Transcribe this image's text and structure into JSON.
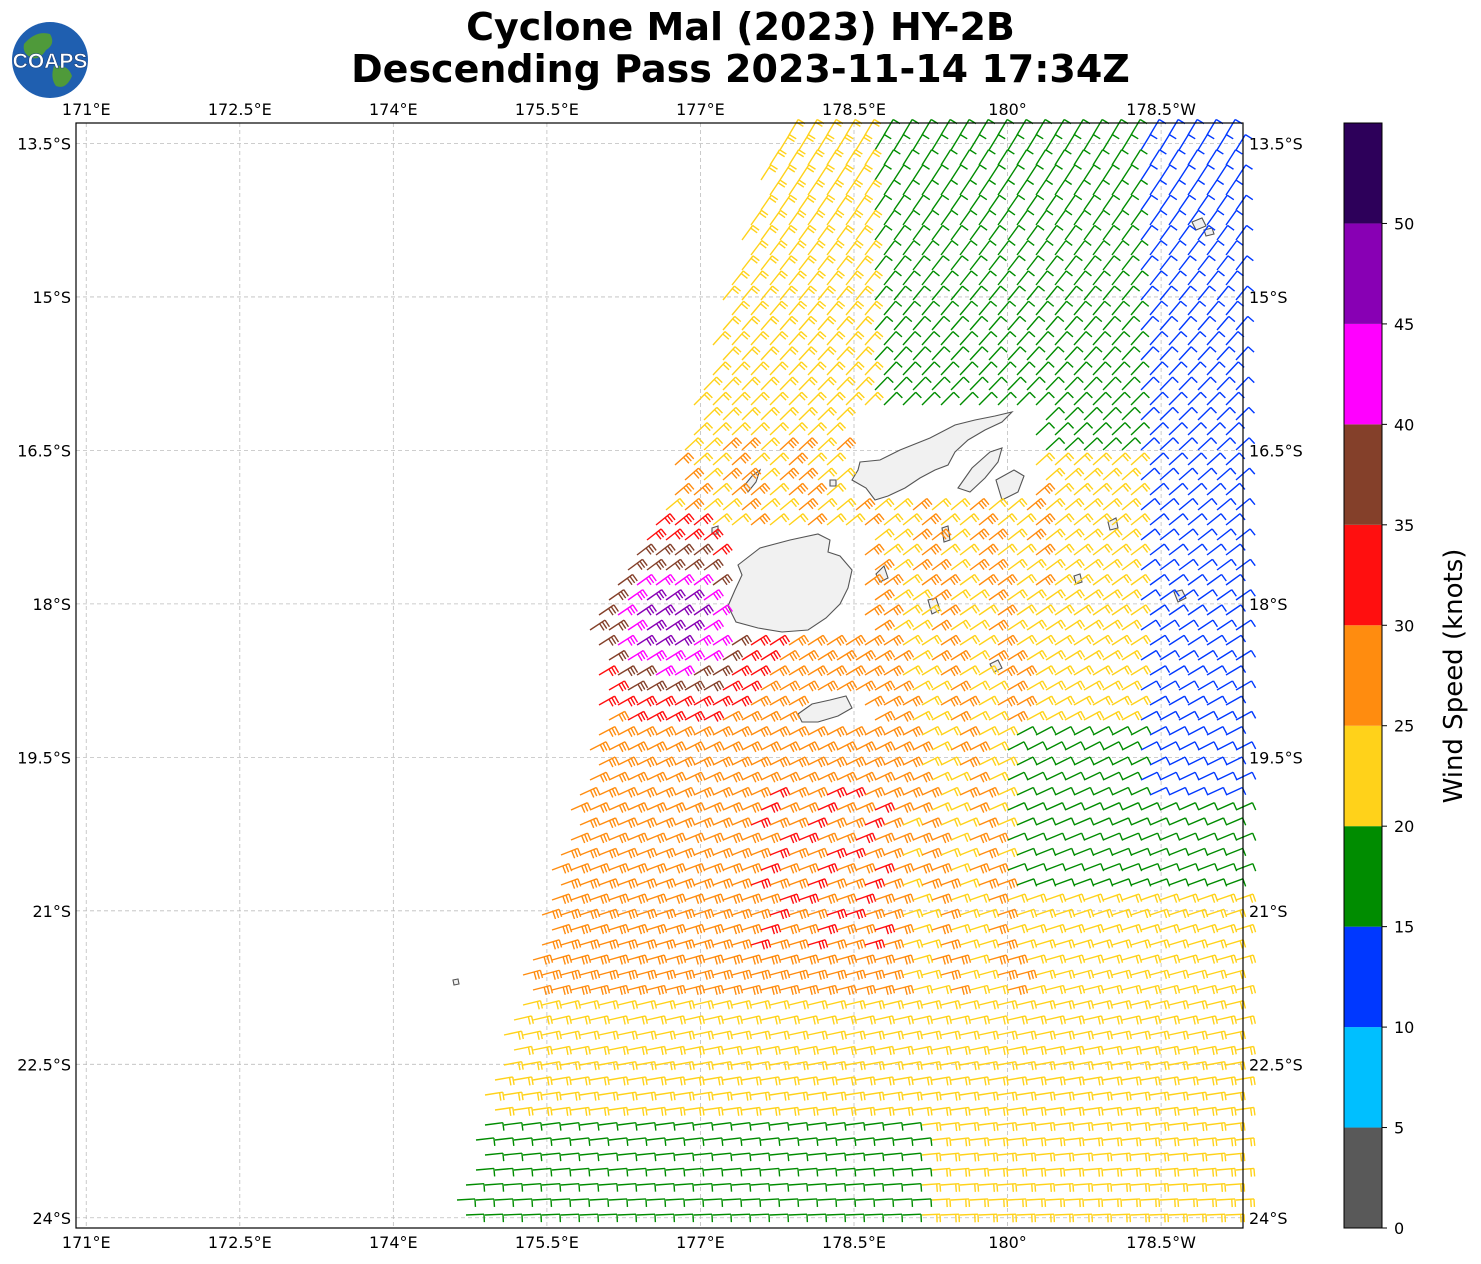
{
  "title": {
    "line1": "Cyclone Mal (2023) HY-2B",
    "line2": "Descending Pass 2023-11-14 17:34Z"
  },
  "logo": {
    "text": "COAPS"
  },
  "map": {
    "x_ticks": [
      "171°E",
      "172.5°E",
      "174°E",
      "175.5°E",
      "177°E",
      "178.5°E",
      "180°",
      "178.5°W"
    ],
    "y_ticks": [
      "13.5°S",
      "15°S",
      "16.5°S",
      "18°S",
      "19.5°S",
      "21°S",
      "22.5°S",
      "24°S"
    ],
    "lon_range": [
      170.9,
      182.3
    ],
    "lat_range": [
      -13.3,
      -24.1
    ]
  },
  "colorbar": {
    "label": "Wind Speed (knots)",
    "ticks": [
      "0",
      "5",
      "10",
      "15",
      "20",
      "25",
      "30",
      "35",
      "40",
      "45",
      "50"
    ],
    "colors": [
      "#595959",
      "#00bfff",
      "#0038ff",
      "#008c00",
      "#ffd21a",
      "#ff8c0f",
      "#ff0f0f",
      "#84402a",
      "#ff00ff",
      "#8800b4",
      "#2d005a"
    ]
  }
}
